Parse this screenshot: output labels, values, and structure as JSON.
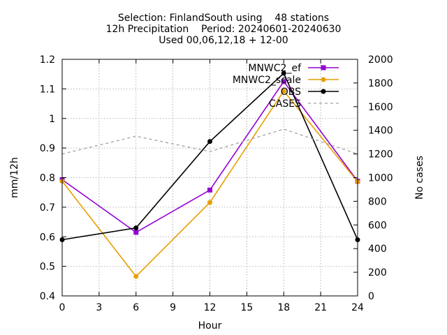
{
  "chart_data": {
    "type": "line",
    "title": [
      "Selection: FinlandSouth using    48 stations",
      "12h Precipitation    Period: 20240601-20240630",
      "Used 00,06,12,18 + 12-00"
    ],
    "xlabel": "Hour",
    "ylabel": "mm/12h",
    "y2label": "No cases",
    "xlim": [
      0,
      24
    ],
    "ylim": [
      0.4,
      1.2
    ],
    "y2lim": [
      0,
      2000
    ],
    "xticks": [
      0,
      3,
      6,
      9,
      12,
      15,
      18,
      21,
      24
    ],
    "yticks": [
      0.4,
      0.5,
      0.6,
      0.7,
      0.8,
      0.9,
      1,
      1.1,
      1.2
    ],
    "y2ticks": [
      0,
      200,
      400,
      600,
      800,
      1000,
      1200,
      1400,
      1600,
      1800,
      2000
    ],
    "grid": true,
    "legend_position": "top-right",
    "x": [
      0,
      6,
      12,
      18,
      24
    ],
    "series": [
      {
        "name": "MNWC2_ef",
        "color": "#9400d3",
        "axis": "y",
        "marker": "square",
        "values": [
          0.793,
          0.615,
          0.758,
          1.125,
          0.788
        ]
      },
      {
        "name": "MNWC2_scale",
        "color": "#e69f00",
        "axis": "y",
        "marker": "circle",
        "values": [
          0.788,
          0.466,
          0.716,
          1.093,
          0.786
        ]
      },
      {
        "name": "OBS",
        "color": "#000000",
        "axis": "y",
        "marker": "circle",
        "values": [
          0.59,
          0.63,
          0.922,
          1.153,
          0.59
        ]
      },
      {
        "name": "CASES",
        "color": "#a0a0a0",
        "axis": "y2",
        "dashed": true,
        "values": [
          1200,
          1350,
          1220,
          1410,
          1200
        ]
      }
    ]
  }
}
